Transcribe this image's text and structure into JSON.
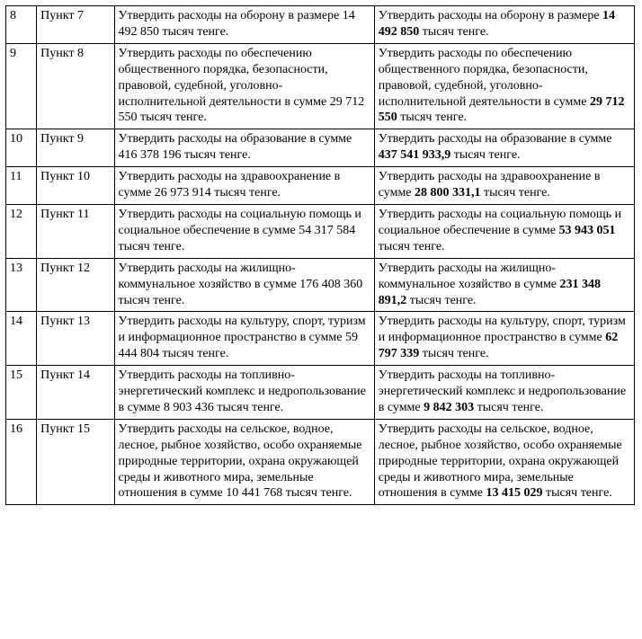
{
  "table": {
    "rows": [
      {
        "num": "8",
        "punkt": "Пункт 7",
        "left_html": "Утвердить расходы на оборону в размере 14 492 850 тысяч тенге.",
        "right_html": "Утвердить расходы на оборону в размере <b>14 492 850</b> тысяч тенге."
      },
      {
        "num": "9",
        "punkt": "Пункт 8",
        "left_html": "Утвердить расходы по обеспечению общественного порядка, безопасности, правовой, судебной, уголовно-исполнительной деятельности в сумме 29 712 550 тысяч тенге.",
        "right_html": "Утвердить расходы по обеспечению общественного порядка, безопасности, правовой, судебной, уголовно-исполнительной деятельности в сумме <b>29 712 550</b> тысяч тенге."
      },
      {
        "num": "10",
        "punkt": "Пункт 9",
        "left_html": "Утвердить расходы на образование в сумме 416 378 196 тысяч тенге.",
        "right_html": "Утвердить расходы на образование в сумме <b>437 541 933,9</b> тысяч тенге."
      },
      {
        "num": "11",
        "punkt": "Пункт 10",
        "left_html": "Утвердить расходы на здравоохранение в сумме 26 973 914 тысяч тенге.",
        "right_html": "Утвердить расходы на здравоохранение в сумме <b>28 800 331,1</b> тысяч тенге."
      },
      {
        "num": "12",
        "punkt": "Пункт 11",
        "left_html": "Утвердить расходы на социальную помощь и социальное обеспечение в сумме 54 317 584 тысяч тенге.",
        "right_html": "Утвердить расходы на социальную помощь и социальное обеспечение в сумме <b>53 943 051</b> тысяч тенге."
      },
      {
        "num": "13",
        "punkt": "Пункт 12",
        "left_html": "Утвердить расходы на жилищно-коммунальное хозяйство в сумме 176 408 360 тысяч тенге.",
        "right_html": "Утвердить расходы на жилищно-коммунальное хозяйство в сумме <b>231 348 891,2</b> тысяч тенге."
      },
      {
        "num": "14",
        "punkt": "Пункт 13",
        "left_html": "Утвердить расходы на культуру, спорт, туризм и информационное пространство в сумме 59 444 804 тысяч тенге.",
        "right_html": "Утвердить расходы на культуру, спорт, туризм и информационное пространство в сумме <b>62 797 339</b> тысяч тенге."
      },
      {
        "num": "15",
        "punkt": "Пункт 14",
        "left_html": "Утвердить расходы на топливно-энергетический комплекс и недропользование в сумме 8 903 436 тысяч тенге.",
        "right_html": "Утвердить расходы на топливно-энергетический комплекс и недропользование в сумме <b>9 842 303</b> тысяч тенге."
      },
      {
        "num": "16",
        "punkt": "Пункт 15",
        "left_html": "Утвердить расходы на сельское, водное, лесное, рыбное хозяйство, особо охраняемые природные территории, охрана окружающей среды и животного мира, земельные отношения в сумме 10 441 768 тысяч тенге.",
        "right_html": "Утвердить расходы на сельское, водное, лесное, рыбное хозяйство, особо охраняемые природные территории, охрана окружающей среды и животного мира, земельные отношения в сумме <b>13 415 029</b> тысяч тенге."
      }
    ]
  }
}
